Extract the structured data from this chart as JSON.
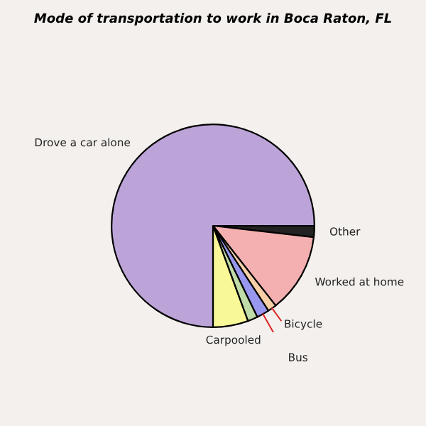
{
  "chart_data": {
    "type": "pie",
    "title": "Mode of transportation to work in Boca Raton, FL",
    "categories": [
      "Other",
      "Worked at home",
      "Bicycle",
      "Bus",
      null,
      "Carpooled",
      "Drove a car alone"
    ],
    "values": [
      1.8,
      12.6,
      1.4,
      2.0,
      1.6,
      5.6,
      75.0
    ],
    "colors": [
      "#222222",
      "#f4b0b0",
      "#f8d0a8",
      "#9898f0",
      "#c0dca8",
      "#f8f898",
      "#bca4d8"
    ]
  }
}
